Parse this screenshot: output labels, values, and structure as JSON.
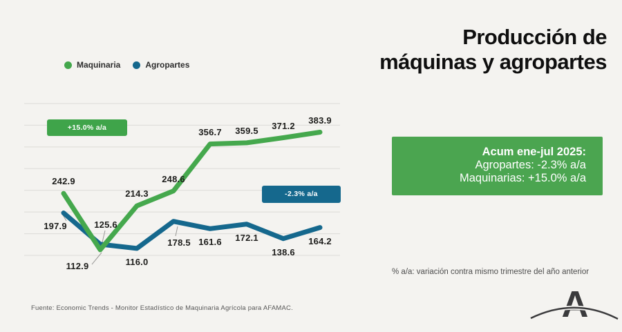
{
  "page": {
    "background_color": "#f4f3f0"
  },
  "title": {
    "line1": "Producción de",
    "line2": "máquinas y agropartes"
  },
  "legend": {
    "items": [
      {
        "label": "Maquinaria",
        "color": "#43a74c"
      },
      {
        "label": "Agropartes",
        "color": "#15688d"
      }
    ]
  },
  "chart_data": {
    "type": "line",
    "series": [
      {
        "name": "Maquinaria",
        "color": "#45a84d",
        "values": [
          242.9,
          112.9,
          214.3,
          248.6,
          356.7,
          359.5,
          371.2,
          383.9
        ]
      },
      {
        "name": "Agropartes",
        "color": "#15688d",
        "values": [
          197.9,
          125.6,
          116.0,
          178.5,
          161.6,
          172.1,
          138.6,
          164.2
        ]
      }
    ],
    "ylim": [
      100,
      450
    ],
    "gridlines": [
      100,
      150,
      200,
      250,
      300,
      350,
      400,
      450
    ],
    "grid": "horizontal only, no axis lines, no x tick labels",
    "legend_position": "top-left",
    "data_labels": "every point labelled with one decimal",
    "gridline_color": "#dcdbd7"
  },
  "badges": {
    "green_badge": {
      "text": "+15.0% a/a",
      "color": "#3fa44a"
    },
    "blue_badge": {
      "text": "-2.3% a/a",
      "color": "#15688d"
    }
  },
  "info_box": {
    "heading": "Acum ene-jul 2025:",
    "lines": [
      "Agropartes: -2.3% a/a",
      "Maquinarias: +15.0% a/a"
    ],
    "background": "#4ba550"
  },
  "footnote": {
    "text": "% a/a: variación contra mismo trimestre del año anterior"
  },
  "source": {
    "text": "Fuente: Economic Trends - Monitor Estadístico de Maquinaria Agrícola para AFAMAC."
  },
  "logo": {
    "letter": "A"
  }
}
